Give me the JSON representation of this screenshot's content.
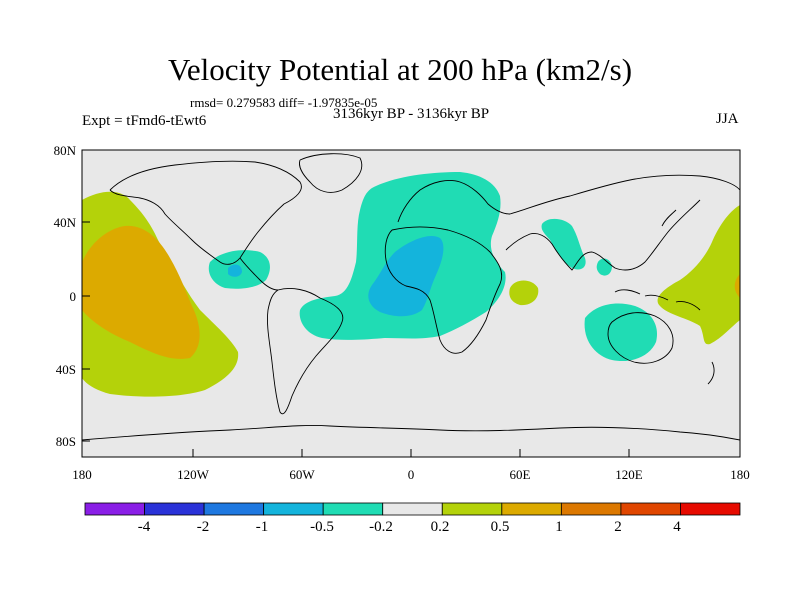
{
  "title": "Velocity Potential at 200 hPa (km2/s)",
  "stats": "rmsd= 0.279583 diff= -1.97835e-05",
  "experiment": "Expt = tFmd6-tEwt6",
  "period": "3136kyr BP - 3136kyr BP",
  "season": "JJA",
  "lat_labels": [
    "80N",
    "40N",
    "0",
    "40S",
    "80S"
  ],
  "lon_labels": [
    "180",
    "120W",
    "60W",
    "0",
    "60E",
    "120E",
    "180"
  ],
  "colorbar": {
    "colors": [
      "#8a1ee6",
      "#2a32d8",
      "#1e78e0",
      "#14b4dc",
      "#20dcb4",
      "#e8e8e8",
      "#b4d20a",
      "#dcaa00",
      "#dc7800",
      "#e04600",
      "#e60a00"
    ],
    "labels": [
      "-4",
      "-2",
      "-1",
      "-0.5",
      "-0.2",
      "0.2",
      "0.5",
      "1",
      "2",
      "4"
    ]
  },
  "colors": {
    "background": "#e8e8e8",
    "neg_02": "#20dcb4",
    "neg_05": "#14b4dc",
    "pos_02": "#b4d20a",
    "pos_05": "#dcaa00",
    "pos_10": "#dc7800"
  }
}
